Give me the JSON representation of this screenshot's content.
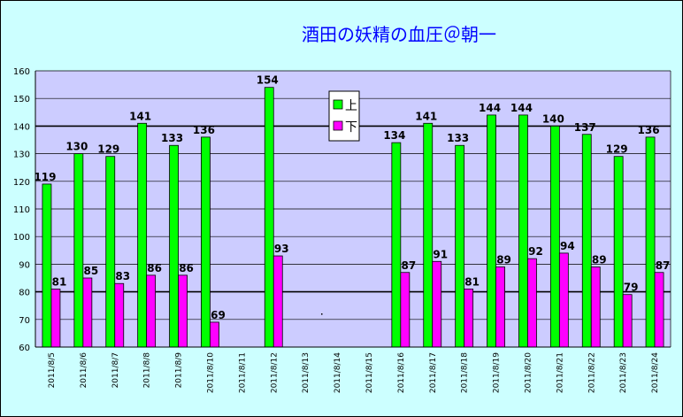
{
  "chart_data": {
    "type": "bar",
    "title": "酒田の妖精の血圧＠朝一",
    "categories": [
      "2011/8/5",
      "2011/8/6",
      "2011/8/7",
      "2011/8/8",
      "2011/8/9",
      "2011/8/10",
      "2011/8/11",
      "2011/8/12",
      "2011/8/13",
      "2011/8/14",
      "2011/8/15",
      "2011/8/16",
      "2011/8/17",
      "2011/8/18",
      "2011/8/19",
      "2011/8/20",
      "2011/8/21",
      "2011/8/22",
      "2011/8/23",
      "2011/8/24"
    ],
    "series": [
      {
        "name": "上",
        "color": "#00ff00",
        "values": [
          119,
          130,
          129,
          141,
          133,
          136,
          null,
          154,
          null,
          null,
          null,
          134,
          141,
          133,
          144,
          144,
          140,
          137,
          129,
          136
        ]
      },
      {
        "name": "下",
        "color": "#ff00ff",
        "values": [
          81,
          85,
          83,
          86,
          86,
          69,
          null,
          93,
          null,
          null,
          null,
          87,
          91,
          81,
          89,
          92,
          94,
          89,
          79,
          87
        ]
      }
    ],
    "ylim": [
      60,
      160
    ],
    "yticks": [
      60,
      70,
      80,
      90,
      100,
      110,
      120,
      130,
      140,
      150,
      160
    ],
    "grid": true,
    "legend_position": "top-center",
    "plot_background": "#ccccff",
    "frame_background": "#ccffff"
  }
}
